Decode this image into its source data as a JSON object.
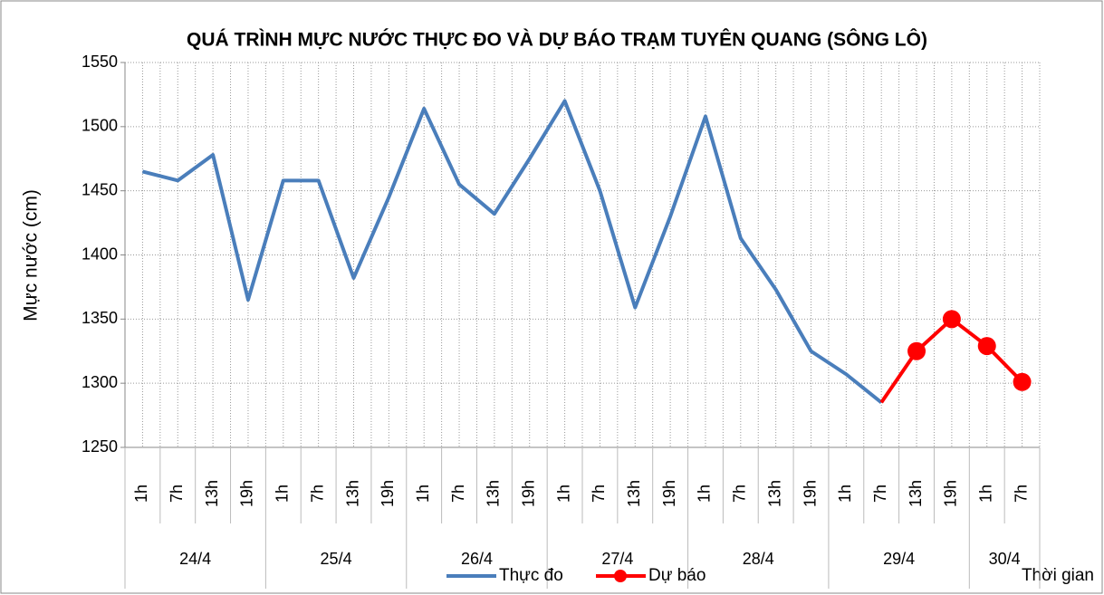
{
  "chart_data": {
    "type": "line",
    "title": "QUÁ TRÌNH MỰC NƯỚC THỰC ĐO VÀ DỰ BÁO TRẠM TUYÊN QUANG (SÔNG LÔ)",
    "y_label": "Mực nước (cm)",
    "x_label": "Thời gian",
    "category_groups": [
      {
        "label": "24/4",
        "categories": [
          "1h",
          "7h",
          "13h",
          "19h"
        ]
      },
      {
        "label": "25/4",
        "categories": [
          "1h",
          "7h",
          "13h",
          "19h"
        ]
      },
      {
        "label": "26/4",
        "categories": [
          "1h",
          "7h",
          "13h",
          "19h"
        ]
      },
      {
        "label": "27/4",
        "categories": [
          "1h",
          "7h",
          "13h",
          "19h"
        ]
      },
      {
        "label": "28/4",
        "categories": [
          "1h",
          "7h",
          "13h",
          "19h"
        ]
      },
      {
        "label": "29/4",
        "categories": [
          "1h",
          "7h",
          "13h",
          "19h"
        ]
      },
      {
        "label": "30/4",
        "categories": [
          "1h",
          "7h"
        ]
      }
    ],
    "series": [
      {
        "name": "Thực đo",
        "color": "#4a7ebb",
        "marker": false,
        "values": [
          1465,
          1458,
          1478,
          1365,
          1458,
          1458,
          1382,
          1445,
          1514,
          1455,
          1432,
          1475,
          1520,
          1450,
          1359,
          1430,
          1508,
          1413,
          1373,
          1325,
          1307,
          1285,
          null,
          null,
          null,
          null
        ]
      },
      {
        "name": "Dự báo",
        "color": "#ff0000",
        "marker": true,
        "values": [
          null,
          null,
          null,
          null,
          null,
          null,
          null,
          null,
          null,
          null,
          null,
          null,
          null,
          null,
          null,
          null,
          null,
          null,
          null,
          null,
          null,
          1285,
          1325,
          1350,
          1329,
          1301
        ]
      }
    ],
    "ylim": [
      1250,
      1550
    ],
    "yticks": [
      1250,
      1300,
      1350,
      1400,
      1450,
      1500,
      1550
    ],
    "grid": true,
    "legend": "bottom"
  }
}
